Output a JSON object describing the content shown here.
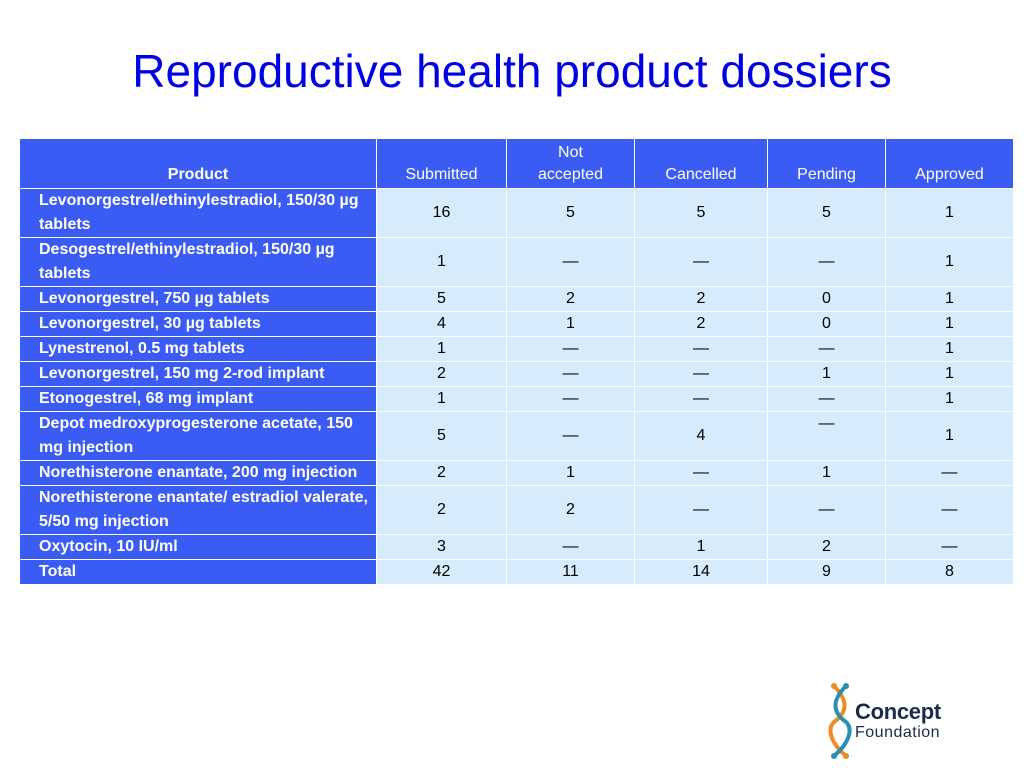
{
  "title": "Reproductive health product dossiers",
  "table": {
    "headers": {
      "product": "Product",
      "submitted": "Submitted",
      "not_accepted_line1": "Not",
      "not_accepted_line2": "accepted",
      "cancelled": "Cancelled",
      "pending": "Pending",
      "approved": "Approved"
    },
    "rows": [
      {
        "product": "Levonorgestrel/ethinylestradiol, 150/30 µg tablets",
        "submitted": "16",
        "not_accepted": "5",
        "cancelled": "5",
        "pending": "5",
        "approved": "1"
      },
      {
        "product": "Desogestrel/ethinylestradiol, 150/30 µg tablets",
        "submitted": "1",
        "not_accepted": "—",
        "cancelled": "—",
        "pending": "—",
        "approved": "1"
      },
      {
        "product": "Levonorgestrel, 750 µg tablets",
        "submitted": "5",
        "not_accepted": "2",
        "cancelled": "2",
        "pending": "0",
        "approved": "1"
      },
      {
        "product": "Levonorgestrel, 30 µg tablets",
        "submitted": "4",
        "not_accepted": "1",
        "cancelled": "2",
        "pending": "0",
        "approved": "1"
      },
      {
        "product": "Lynestrenol, 0.5 mg tablets",
        "submitted": "1",
        "not_accepted": "—",
        "cancelled": "—",
        "pending": "—",
        "approved": "1"
      },
      {
        "product": "Levonorgestrel, 150 mg 2-rod implant",
        "submitted": "2",
        "not_accepted": "—",
        "cancelled": "—",
        "pending": "1",
        "approved": "1"
      },
      {
        "product": "Etonogestrel, 68 mg implant",
        "submitted": "1",
        "not_accepted": "—",
        "cancelled": "—",
        "pending": "—",
        "approved": "1"
      },
      {
        "product": "Depot medroxyprogesterone acetate, 150 mg injection",
        "submitted": "5",
        "not_accepted": "—",
        "cancelled": "4",
        "pending": "—",
        "approved": "1"
      },
      {
        "product": "Norethisterone enantate, 200 mg injection",
        "submitted": "2",
        "not_accepted": "1",
        "cancelled": "—",
        "pending": "1",
        "approved": "—"
      },
      {
        "product": "Norethisterone enantate/ estradiol valerate, 5/50 mg injection",
        "submitted": "2",
        "not_accepted": "2",
        "cancelled": "—",
        "pending": "—",
        "approved": "—"
      },
      {
        "product": "Oxytocin, 10 IU/ml",
        "submitted": "3",
        "not_accepted": "—",
        "cancelled": "1",
        "pending": "2",
        "approved": "—"
      }
    ],
    "total": {
      "product": "Total",
      "submitted": "42",
      "not_accepted": "11",
      "cancelled": "14",
      "pending": "9",
      "approved": "8"
    }
  },
  "logo": {
    "word1": "Concept",
    "word2": "Foundation",
    "colors": {
      "orange": "#f08a24",
      "teal": "#2a8fb0",
      "navy": "#1a2b4c"
    }
  },
  "colors": {
    "title": "#0000e6",
    "header_bg": "#3b5bf5",
    "cell_bg": "#d6ecfc"
  }
}
